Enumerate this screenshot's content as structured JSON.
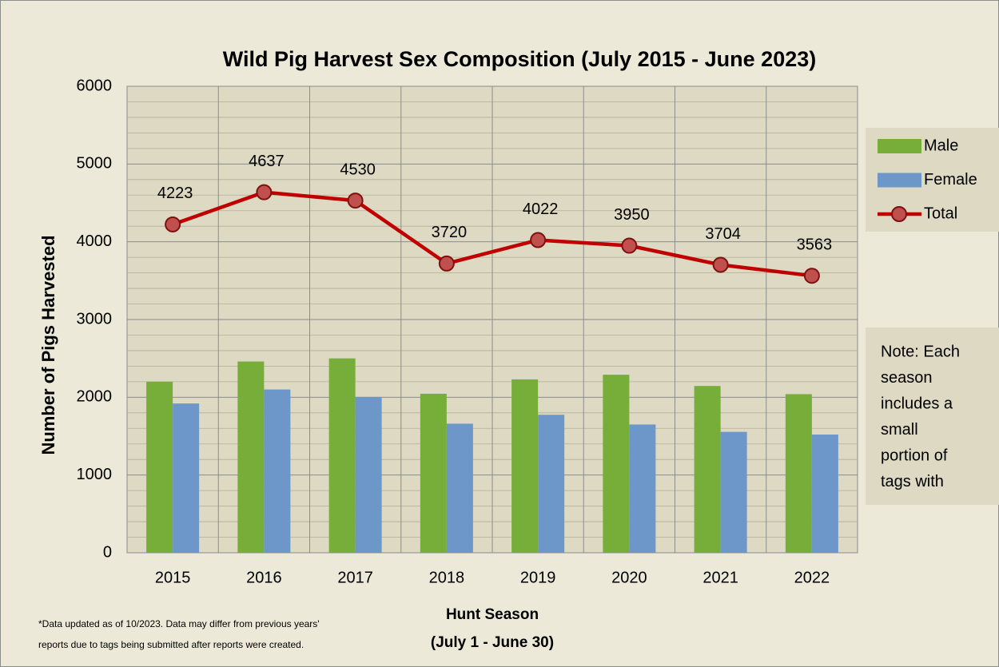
{
  "chart_data": {
    "type": "bar_line",
    "title": "Wild Pig Harvest Sex Composition (July 2015 - June 2023)",
    "ylabel": "Number of Pigs Harvested",
    "xlabel": [
      "Hunt Season",
      "(July 1 - June 30)"
    ],
    "categories": [
      "2015",
      "2016",
      "2017",
      "2018",
      "2019",
      "2020",
      "2021",
      "2022"
    ],
    "series": [
      {
        "name": "Male",
        "type": "bar",
        "color": "#77ad39",
        "values": [
          2200,
          2460,
          2500,
          2045,
          2230,
          2290,
          2145,
          2040
        ]
      },
      {
        "name": "Female",
        "type": "bar",
        "color": "#6d97c8",
        "values": [
          1920,
          2100,
          2005,
          1660,
          1775,
          1650,
          1555,
          1520
        ]
      },
      {
        "name": "Total",
        "type": "line",
        "color": "#c00000",
        "values": [
          4223,
          4637,
          4530,
          3720,
          4022,
          3950,
          3704,
          3563
        ]
      }
    ],
    "ylim": [
      0,
      6000
    ],
    "yticks": [
      0,
      1000,
      2000,
      3000,
      4000,
      5000,
      6000
    ],
    "minor_yticks": [
      200,
      400,
      600,
      800,
      1200,
      1400,
      1600,
      1800,
      2200,
      2400,
      2600,
      2800,
      3200,
      3400,
      3600,
      3800,
      4200,
      4400,
      4600,
      4800,
      5200,
      5400,
      5600,
      5800
    ],
    "grid": true,
    "legend": "right",
    "note": [
      "Note: Each",
      "season",
      "includes a",
      "small",
      "portion of",
      "tags with"
    ],
    "footnote": [
      "*Data updated as of 10/2023. Data may differ from previous years'",
      "reports due to tags being submitted after reports were created."
    ]
  }
}
